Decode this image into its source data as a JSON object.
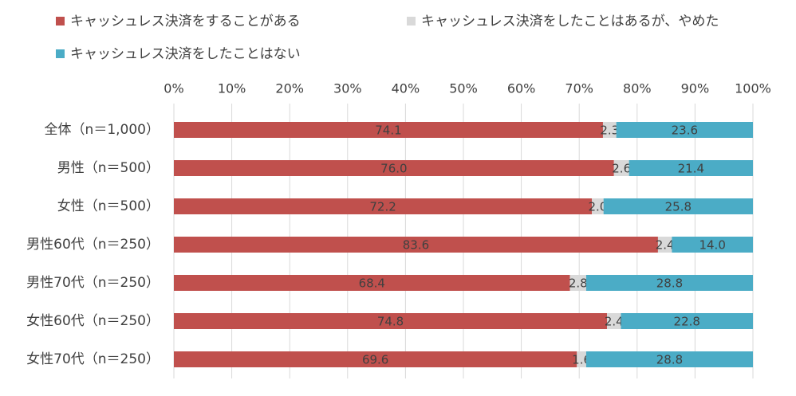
{
  "chart_data": {
    "type": "stacked-bar-horizontal",
    "categories": [
      "全体（n＝1,000）",
      "男性（n＝500）",
      "女性（n＝500）",
      "男性60代（n＝250）",
      "男性70代（n＝250）",
      "女性60代（n＝250）",
      "女性70代（n＝250）"
    ],
    "series": [
      {
        "name": "キャッシュレス決済をすることがある",
        "color": "#c0504d",
        "values": [
          74.1,
          76.0,
          72.2,
          83.6,
          68.4,
          74.8,
          69.6
        ],
        "value_labels": [
          "74.1",
          "76.0",
          "72.2",
          "83.6",
          "68.4",
          "74.8",
          "69.6"
        ]
      },
      {
        "name": "キャッシュレス決済をしたことはあるが、やめた",
        "color": "#d9d9d9",
        "values": [
          2.3,
          2.6,
          2.0,
          2.4,
          2.8,
          2.4,
          1.6
        ],
        "value_labels": [
          "2.3",
          "2.6",
          "2.0",
          "2.4",
          "2.8",
          "2.4",
          "1.6"
        ]
      },
      {
        "name": "キャッシュレス決済をしたことはない",
        "color": "#4bacc6",
        "values": [
          23.6,
          21.4,
          25.8,
          14.0,
          28.8,
          22.8,
          28.8
        ],
        "value_labels": [
          "23.6",
          "21.4",
          "25.8",
          "14.0",
          "28.8",
          "22.8",
          "28.8"
        ]
      }
    ],
    "xlim": [
      0,
      100
    ],
    "xticks": [
      {
        "value": 0,
        "label": "0%"
      },
      {
        "value": 10,
        "label": "10%"
      },
      {
        "value": 20,
        "label": "20%"
      },
      {
        "value": 30,
        "label": "30%"
      },
      {
        "value": 40,
        "label": "40%"
      },
      {
        "value": 50,
        "label": "50%"
      },
      {
        "value": 60,
        "label": "60%"
      },
      {
        "value": 70,
        "label": "70%"
      },
      {
        "value": 80,
        "label": "80%"
      },
      {
        "value": 90,
        "label": "90%"
      },
      {
        "value": 100,
        "label": "100%"
      }
    ],
    "grid": true
  }
}
